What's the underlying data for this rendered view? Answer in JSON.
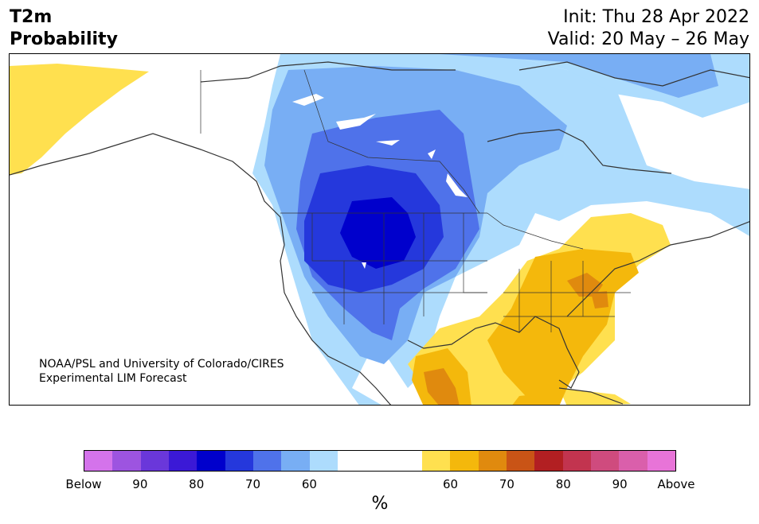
{
  "header": {
    "title_line1": "T2m",
    "title_line2": "Probability",
    "init": "Init: Thu 28 Apr 2022",
    "valid": "Valid: 20 May – 26 May"
  },
  "credit": {
    "line1": "NOAA/PSL and University of Colorado/CIRES",
    "line2": "Experimental LIM Forecast"
  },
  "colorbar": {
    "unit": "%",
    "below_colors": [
      "#d473eb",
      "#9d54e0",
      "#6a37da",
      "#3b19d6",
      "#0000cc",
      "#2538dc",
      "#4f72ea",
      "#78aef4",
      "#addcfd"
    ],
    "neutral_color": "#ffffff",
    "above_colors": [
      "#ffe04f",
      "#f4b80c",
      "#e08a0e",
      "#c95416",
      "#b21f22",
      "#c2344f",
      "#cf4b7e",
      "#da5fab",
      "#e874d8"
    ],
    "tick_labels": [
      "Below",
      "90",
      "80",
      "70",
      "60",
      "60",
      "70",
      "80",
      "90",
      "Above"
    ]
  },
  "map_colors": {
    "coast": "#333333",
    "land": "#ffffff"
  }
}
